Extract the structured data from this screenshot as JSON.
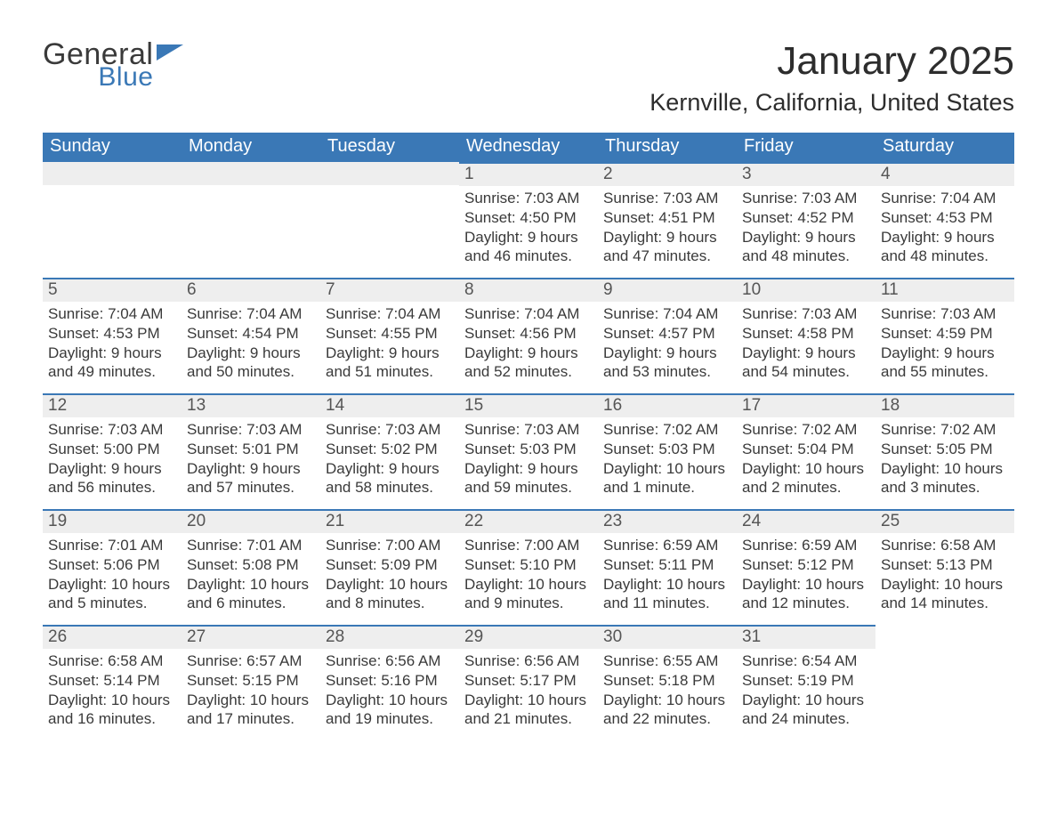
{
  "brand": {
    "word1": "General",
    "word2": "Blue",
    "color_primary": "#3a78b6"
  },
  "title": "January 2025",
  "location": "Kernville, California, United States",
  "day_headers": [
    "Sunday",
    "Monday",
    "Tuesday",
    "Wednesday",
    "Thursday",
    "Friday",
    "Saturday"
  ],
  "styles": {
    "header_bg": "#3a78b6",
    "header_text": "#ffffff",
    "daynum_bg": "#eeeeee",
    "daynum_border_top": "#3a78b6",
    "body_text": "#3a3a3a",
    "page_bg": "#ffffff",
    "title_fontsize_pt": 33,
    "location_fontsize_pt": 20,
    "header_fontsize_pt": 15,
    "daynum_fontsize_pt": 14,
    "body_fontsize_pt": 13
  },
  "weeks": [
    [
      null,
      null,
      null,
      {
        "n": "1",
        "sunrise": "7:03 AM",
        "sunset": "4:50 PM",
        "daylight": "9 hours and 46 minutes."
      },
      {
        "n": "2",
        "sunrise": "7:03 AM",
        "sunset": "4:51 PM",
        "daylight": "9 hours and 47 minutes."
      },
      {
        "n": "3",
        "sunrise": "7:03 AM",
        "sunset": "4:52 PM",
        "daylight": "9 hours and 48 minutes."
      },
      {
        "n": "4",
        "sunrise": "7:04 AM",
        "sunset": "4:53 PM",
        "daylight": "9 hours and 48 minutes."
      }
    ],
    [
      {
        "n": "5",
        "sunrise": "7:04 AM",
        "sunset": "4:53 PM",
        "daylight": "9 hours and 49 minutes."
      },
      {
        "n": "6",
        "sunrise": "7:04 AM",
        "sunset": "4:54 PM",
        "daylight": "9 hours and 50 minutes."
      },
      {
        "n": "7",
        "sunrise": "7:04 AM",
        "sunset": "4:55 PM",
        "daylight": "9 hours and 51 minutes."
      },
      {
        "n": "8",
        "sunrise": "7:04 AM",
        "sunset": "4:56 PM",
        "daylight": "9 hours and 52 minutes."
      },
      {
        "n": "9",
        "sunrise": "7:04 AM",
        "sunset": "4:57 PM",
        "daylight": "9 hours and 53 minutes."
      },
      {
        "n": "10",
        "sunrise": "7:03 AM",
        "sunset": "4:58 PM",
        "daylight": "9 hours and 54 minutes."
      },
      {
        "n": "11",
        "sunrise": "7:03 AM",
        "sunset": "4:59 PM",
        "daylight": "9 hours and 55 minutes."
      }
    ],
    [
      {
        "n": "12",
        "sunrise": "7:03 AM",
        "sunset": "5:00 PM",
        "daylight": "9 hours and 56 minutes."
      },
      {
        "n": "13",
        "sunrise": "7:03 AM",
        "sunset": "5:01 PM",
        "daylight": "9 hours and 57 minutes."
      },
      {
        "n": "14",
        "sunrise": "7:03 AM",
        "sunset": "5:02 PM",
        "daylight": "9 hours and 58 minutes."
      },
      {
        "n": "15",
        "sunrise": "7:03 AM",
        "sunset": "5:03 PM",
        "daylight": "9 hours and 59 minutes."
      },
      {
        "n": "16",
        "sunrise": "7:02 AM",
        "sunset": "5:03 PM",
        "daylight": "10 hours and 1 minute."
      },
      {
        "n": "17",
        "sunrise": "7:02 AM",
        "sunset": "5:04 PM",
        "daylight": "10 hours and 2 minutes."
      },
      {
        "n": "18",
        "sunrise": "7:02 AM",
        "sunset": "5:05 PM",
        "daylight": "10 hours and 3 minutes."
      }
    ],
    [
      {
        "n": "19",
        "sunrise": "7:01 AM",
        "sunset": "5:06 PM",
        "daylight": "10 hours and 5 minutes."
      },
      {
        "n": "20",
        "sunrise": "7:01 AM",
        "sunset": "5:08 PM",
        "daylight": "10 hours and 6 minutes."
      },
      {
        "n": "21",
        "sunrise": "7:00 AM",
        "sunset": "5:09 PM",
        "daylight": "10 hours and 8 minutes."
      },
      {
        "n": "22",
        "sunrise": "7:00 AM",
        "sunset": "5:10 PM",
        "daylight": "10 hours and 9 minutes."
      },
      {
        "n": "23",
        "sunrise": "6:59 AM",
        "sunset": "5:11 PM",
        "daylight": "10 hours and 11 minutes."
      },
      {
        "n": "24",
        "sunrise": "6:59 AM",
        "sunset": "5:12 PM",
        "daylight": "10 hours and 12 minutes."
      },
      {
        "n": "25",
        "sunrise": "6:58 AM",
        "sunset": "5:13 PM",
        "daylight": "10 hours and 14 minutes."
      }
    ],
    [
      {
        "n": "26",
        "sunrise": "6:58 AM",
        "sunset": "5:14 PM",
        "daylight": "10 hours and 16 minutes."
      },
      {
        "n": "27",
        "sunrise": "6:57 AM",
        "sunset": "5:15 PM",
        "daylight": "10 hours and 17 minutes."
      },
      {
        "n": "28",
        "sunrise": "6:56 AM",
        "sunset": "5:16 PM",
        "daylight": "10 hours and 19 minutes."
      },
      {
        "n": "29",
        "sunrise": "6:56 AM",
        "sunset": "5:17 PM",
        "daylight": "10 hours and 21 minutes."
      },
      {
        "n": "30",
        "sunrise": "6:55 AM",
        "sunset": "5:18 PM",
        "daylight": "10 hours and 22 minutes."
      },
      {
        "n": "31",
        "sunrise": "6:54 AM",
        "sunset": "5:19 PM",
        "daylight": "10 hours and 24 minutes."
      },
      null
    ]
  ],
  "labels": {
    "sunrise": "Sunrise:",
    "sunset": "Sunset:",
    "daylight": "Daylight:"
  }
}
